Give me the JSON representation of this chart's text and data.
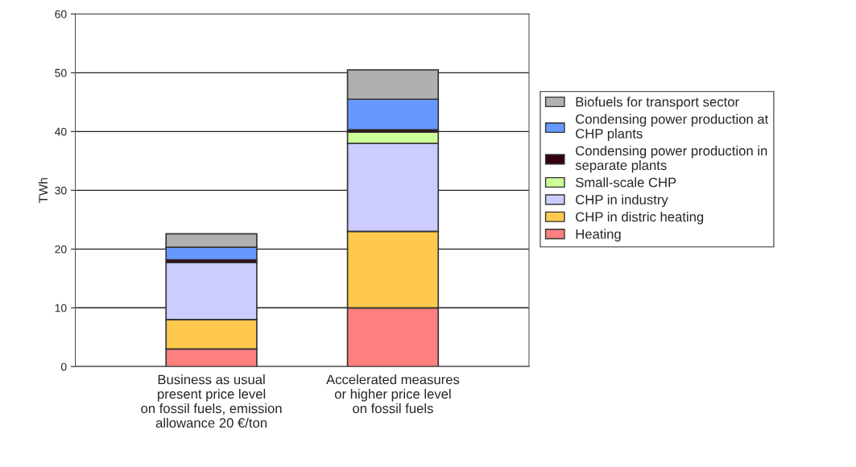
{
  "chart_data": {
    "type": "bar",
    "stacked": true,
    "ylabel": "TWh",
    "categories": [
      "Business as usual\npresent price level\non fossil fuels, emission\nallowance 20 €/ton",
      "Accelerated measures\nor higher price level\non fossil fuels"
    ],
    "series": [
      {
        "name": "Heating",
        "color": "#ff8080",
        "values": [
          3,
          10
        ]
      },
      {
        "name": "CHP in distric heating",
        "color": "#ffc94d",
        "values": [
          5,
          13
        ]
      },
      {
        "name": "CHP in industry",
        "color": "#ccccff",
        "values": [
          9.7,
          15
        ]
      },
      {
        "name": "Small-scale CHP",
        "color": "#ccff99",
        "values": [
          0,
          1.9
        ]
      },
      {
        "name": "Condensing power production in\nseparate plants",
        "color": "#330011",
        "values": [
          0.5,
          0.4
        ]
      },
      {
        "name": "Condensing power production at\nCHP plants",
        "color": "#6699ff",
        "values": [
          2.1,
          5.2
        ]
      },
      {
        "name": "Biofuels for transport sector",
        "color": "#b0b0b0",
        "values": [
          2.3,
          5.0
        ]
      }
    ],
    "ylim": [
      0,
      60
    ],
    "yticks": [
      0,
      10,
      20,
      30,
      40,
      50,
      60
    ],
    "grid": "y",
    "legend": "right"
  }
}
